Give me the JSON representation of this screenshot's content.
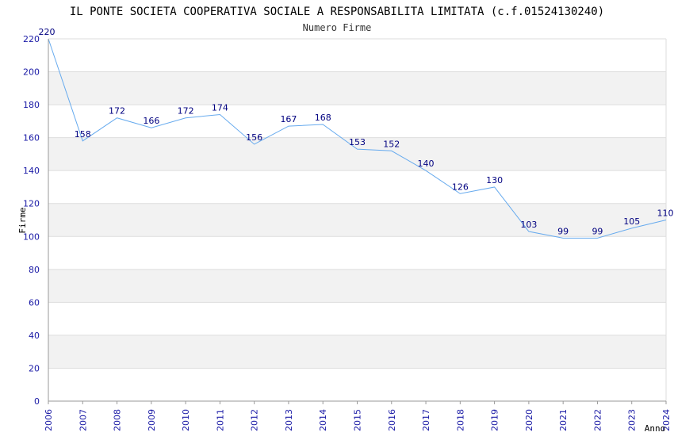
{
  "chart_data": {
    "type": "line",
    "title": "IL PONTE SOCIETA COOPERATIVA SOCIALE A RESPONSABILITA LIMITATA (c.f.01524130240)",
    "subtitle": "Numero Firme",
    "xlabel": "Anno",
    "ylabel": "Firme",
    "x": [
      "2006",
      "2007",
      "2008",
      "2009",
      "2010",
      "2011",
      "2012",
      "2013",
      "2014",
      "2015",
      "2016",
      "2017",
      "2018",
      "2019",
      "2020",
      "2021",
      "2022",
      "2023",
      "2024"
    ],
    "series": [
      {
        "name": "Numero Firme",
        "values": [
          220,
          158,
          172,
          166,
          172,
          174,
          156,
          167,
          168,
          153,
          152,
          140,
          126,
          130,
          103,
          99,
          99,
          105,
          110
        ]
      }
    ],
    "ylim": [
      0,
      220
    ],
    "yticks": [
      0,
      20,
      40,
      60,
      80,
      100,
      120,
      140,
      160,
      180,
      200,
      220
    ],
    "grid": true,
    "colors": {
      "line": "#66aaee",
      "band": "#f2f2f2",
      "grid": "#dddddd",
      "tick": "#1a1aa6",
      "label": "#000080"
    }
  }
}
